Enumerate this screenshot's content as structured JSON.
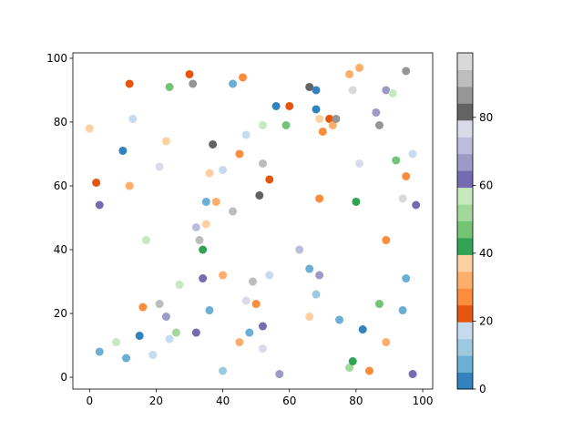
{
  "chart_data": {
    "type": "scatter",
    "x": [
      0,
      2,
      3,
      3,
      8,
      10,
      11,
      12,
      12,
      13,
      15,
      16,
      17,
      19,
      21,
      21,
      23,
      23,
      24,
      24,
      26,
      27,
      30,
      31,
      32,
      32,
      33,
      34,
      34,
      35,
      35,
      36,
      36,
      37,
      38,
      40,
      40,
      40,
      43,
      43,
      45,
      45,
      46,
      47,
      47,
      48,
      49,
      50,
      51,
      52,
      52,
      52,
      52,
      54,
      54,
      56,
      57,
      59,
      60,
      63,
      66,
      66,
      66,
      68,
      68,
      68,
      69,
      69,
      69,
      70,
      72,
      73,
      74,
      75,
      78,
      78,
      79,
      79,
      80,
      81,
      81,
      82,
      84,
      86,
      87,
      87,
      89,
      89,
      89,
      91,
      92,
      94,
      95,
      95,
      94,
      95,
      97,
      98,
      97
    ],
    "y": [
      78,
      61,
      54,
      8,
      11,
      71,
      6,
      92,
      60,
      81,
      13,
      22,
      43,
      7,
      66,
      23,
      74,
      19,
      91,
      12,
      14,
      29,
      95,
      92,
      47,
      14,
      43,
      40,
      31,
      48,
      55,
      64,
      21,
      73,
      55,
      65,
      32,
      2,
      92,
      52,
      70,
      11,
      94,
      76,
      24,
      14,
      30,
      23,
      57,
      79,
      67,
      16,
      9,
      62,
      32,
      85,
      1,
      79,
      85,
      40,
      91,
      34,
      19,
      90,
      84,
      26,
      56,
      81,
      32,
      77,
      81,
      79,
      81,
      18,
      95,
      3,
      90,
      5,
      55,
      67,
      97,
      15,
      2,
      83,
      79,
      23,
      90,
      43,
      11,
      89,
      68,
      56,
      96,
      63,
      21,
      31,
      70,
      54,
      1
    ],
    "c": [
      37,
      22,
      62,
      7,
      57,
      2,
      7,
      22,
      32,
      17,
      2,
      27,
      57,
      17,
      77,
      92,
      37,
      67,
      47,
      17,
      52,
      57,
      22,
      87,
      72,
      62,
      92,
      42,
      62,
      37,
      7,
      37,
      7,
      82,
      32,
      17,
      32,
      12,
      7,
      92,
      27,
      32,
      27,
      17,
      77,
      7,
      92,
      27,
      82,
      57,
      92,
      62,
      77,
      22,
      17,
      2,
      67,
      47,
      22,
      72,
      82,
      7,
      37,
      2,
      2,
      12,
      27,
      37,
      67,
      27,
      22,
      32,
      87,
      7,
      32,
      52,
      97,
      42,
      42,
      77,
      32,
      2,
      27,
      67,
      87,
      47,
      67,
      27,
      32,
      57,
      47,
      97,
      87,
      27,
      7,
      7,
      17,
      62,
      62
    ],
    "clim": [
      0,
      99
    ],
    "colormap": [
      "#3182bd",
      "#6baed6",
      "#9ecae1",
      "#c6dbef",
      "#e6550d",
      "#fd8d3c",
      "#fdae6b",
      "#fdd0a2",
      "#31a354",
      "#74c476",
      "#a1d99b",
      "#c7e9c0",
      "#756bb1",
      "#9e9ac8",
      "#bcbddc",
      "#dadaeb",
      "#636363",
      "#969696",
      "#bdbdbd",
      "#d9d9d9"
    ],
    "cticks": [
      0,
      20,
      40,
      60,
      80
    ],
    "xlim": [
      -5,
      103
    ],
    "ylim": [
      -3.7,
      101.7
    ],
    "xticks": [
      0,
      20,
      40,
      60,
      80,
      100
    ],
    "yticks": [
      0,
      20,
      40,
      60,
      80,
      100
    ]
  }
}
